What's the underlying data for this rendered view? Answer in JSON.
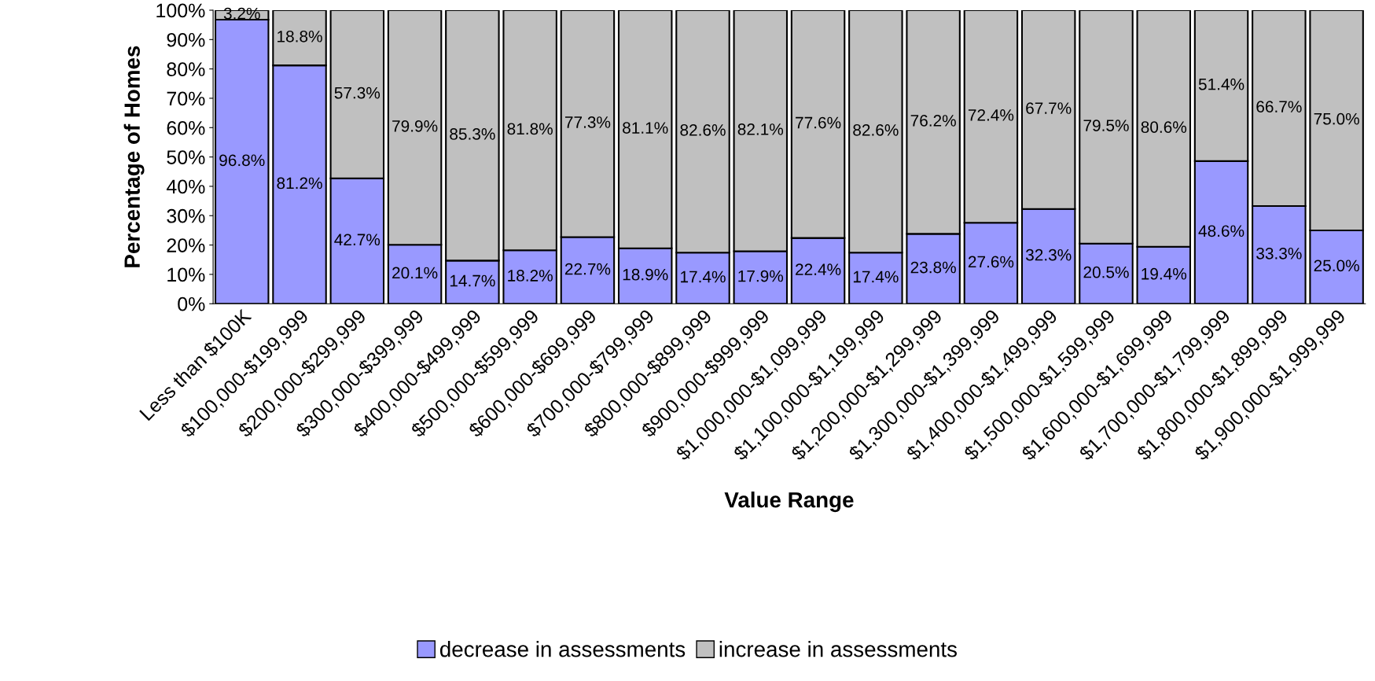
{
  "chart_data": {
    "type": "bar",
    "stacked": true,
    "xlabel": "Value Range",
    "ylabel": "Percentage of Homes",
    "categories": [
      "Less than $100K",
      "$100,000-$199,999",
      "$200,000-$299,999",
      "$300,000-$399,999",
      "$400,000-$499,999",
      "$500,000-$599,999",
      "$600,000-$699,999",
      "$700,000-$799,999",
      "$800,000-$899,999",
      "$900,000-$999,999",
      "$1,000,000-$1,099,999",
      "$1,100,000-$1,199,999",
      "$1,200,000-$1,299,999",
      "$1,300,000-$1,399,999",
      "$1,400,000-$1,499,999",
      "$1,500,000-$1,599,999",
      "$1,600,000-$1,699,999",
      "$1,700,000-$1,799,999",
      "$1,800,000-$1,899,999",
      "$1,900,000-$1,999,999"
    ],
    "series": [
      {
        "name": "decrease in assessments",
        "color": "#9999ff",
        "values": [
          96.8,
          81.2,
          42.7,
          20.1,
          14.7,
          18.2,
          22.7,
          18.9,
          17.4,
          17.9,
          22.4,
          17.4,
          23.8,
          27.6,
          32.3,
          20.5,
          19.4,
          48.6,
          33.3,
          25.0
        ],
        "value_labels": [
          "96.8%",
          "81.2%",
          "42.7%",
          "20.1%",
          "14.7%",
          "18.2%",
          "22.7%",
          "18.9%",
          "17.4%",
          "17.9%",
          "22.4%",
          "17.4%",
          "23.8%",
          "27.6%",
          "32.3%",
          "20.5%",
          "19.4%",
          "48.6%",
          "33.3%",
          "25.0%"
        ]
      },
      {
        "name": "increase in assessments",
        "color": "#c0c0c0",
        "values": [
          3.2,
          18.8,
          57.3,
          79.9,
          85.3,
          81.8,
          77.3,
          81.1,
          82.6,
          82.1,
          77.6,
          82.6,
          76.2,
          72.4,
          67.7,
          79.5,
          80.6,
          51.4,
          66.7,
          75.0
        ],
        "value_labels": [
          "3.2%",
          "18.8%",
          "57.3%",
          "79.9%",
          "85.3%",
          "81.8%",
          "77.3%",
          "81.1%",
          "82.6%",
          "82.1%",
          "77.6%",
          "82.6%",
          "76.2%",
          "72.4%",
          "67.7%",
          "79.5%",
          "80.6%",
          "51.4%",
          "66.7%",
          "75.0%"
        ]
      }
    ],
    "ylim": [
      0,
      100
    ],
    "yticks": [
      {
        "value": 0,
        "label": "0%"
      },
      {
        "value": 10,
        "label": "10%"
      },
      {
        "value": 20,
        "label": "20%"
      },
      {
        "value": 30,
        "label": "30%"
      },
      {
        "value": 40,
        "label": "40%"
      },
      {
        "value": 50,
        "label": "50%"
      },
      {
        "value": 60,
        "label": "60%"
      },
      {
        "value": 70,
        "label": "70%"
      },
      {
        "value": 80,
        "label": "80%"
      },
      {
        "value": 90,
        "label": "90%"
      },
      {
        "value": 100,
        "label": "100%"
      }
    ],
    "legend": "bottom"
  }
}
